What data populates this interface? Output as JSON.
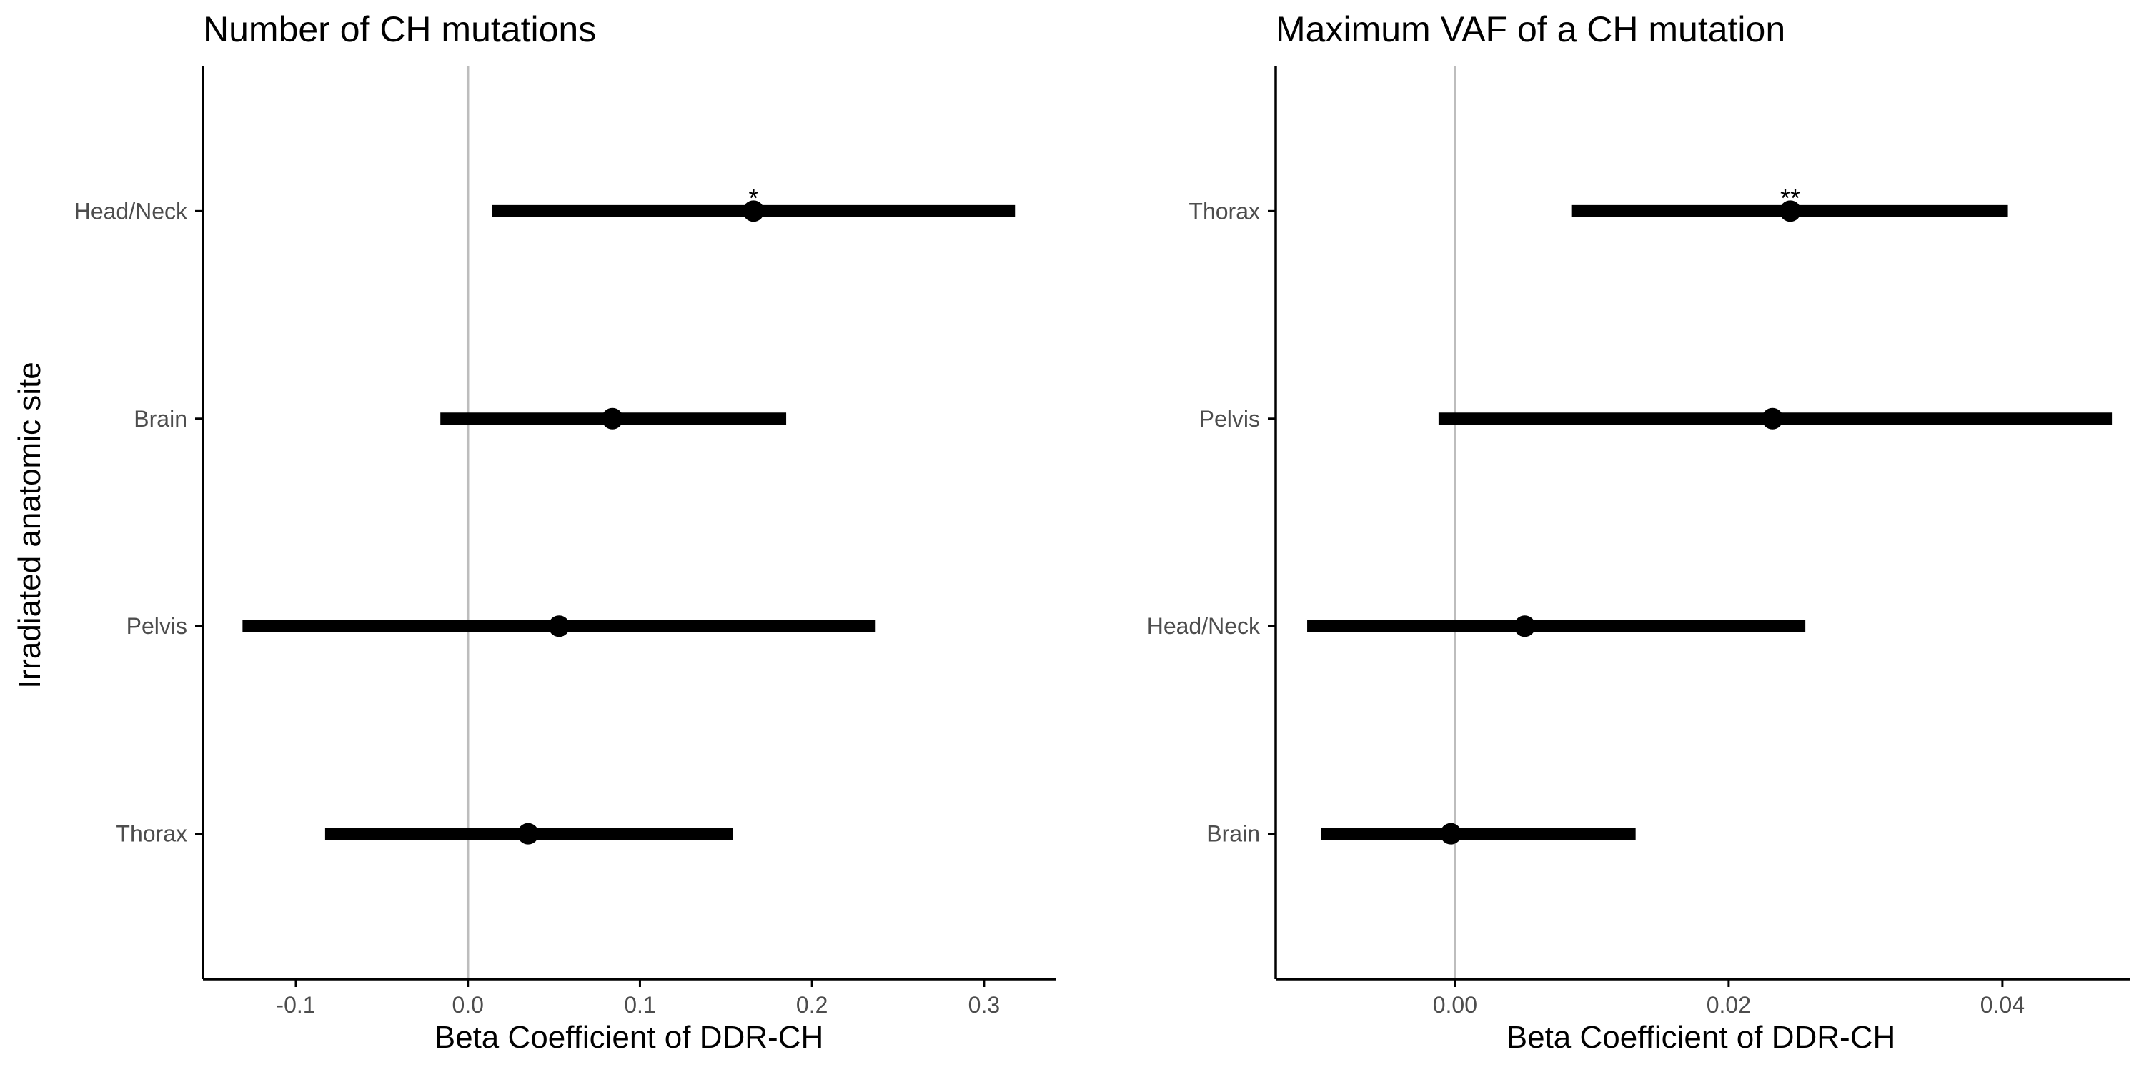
{
  "chart_data": [
    {
      "type": "forest",
      "title": "Number of CH mutations",
      "xlabel": "Beta Coefficient of DDR-CH",
      "ylabel": "Irradiated anatomic site",
      "xlim": [
        -0.154,
        0.342
      ],
      "x_ticks": [
        -0.1,
        0.0,
        0.1,
        0.2,
        0.3
      ],
      "x_tick_labels": [
        "-0.1",
        "0.0",
        "0.1",
        "0.2",
        "0.3"
      ],
      "reference_line": 0,
      "categories": [
        "Head/Neck",
        "Brain",
        "Pelvis",
        "Thorax"
      ],
      "estimates": [
        0.166,
        0.084,
        0.053,
        0.035
      ],
      "ci_lower": [
        0.014,
        -0.016,
        -0.131,
        -0.083
      ],
      "ci_upper": [
        0.318,
        0.185,
        0.237,
        0.154
      ],
      "significance": [
        "*",
        "",
        "",
        ""
      ],
      "grid": false
    },
    {
      "type": "forest",
      "title": "Maximum VAF of a CH mutation",
      "xlabel": "Beta Coefficient of DDR-CH",
      "ylabel": "",
      "xlim": [
        -0.0131,
        0.0493
      ],
      "x_ticks": [
        0.0,
        0.02,
        0.04
      ],
      "x_tick_labels": [
        "0.00",
        "0.02",
        "0.04"
      ],
      "reference_line": 0,
      "categories": [
        "Thorax",
        "Pelvis",
        "Head/Neck",
        "Brain"
      ],
      "estimates": [
        0.0245,
        0.0232,
        0.0051,
        -0.0003
      ],
      "ci_lower": [
        0.0085,
        -0.0012,
        -0.0108,
        -0.0098
      ],
      "ci_upper": [
        0.0404,
        0.048,
        0.0256,
        0.0132
      ],
      "significance": [
        "**",
        "",
        "",
        ""
      ],
      "grid": false
    }
  ]
}
